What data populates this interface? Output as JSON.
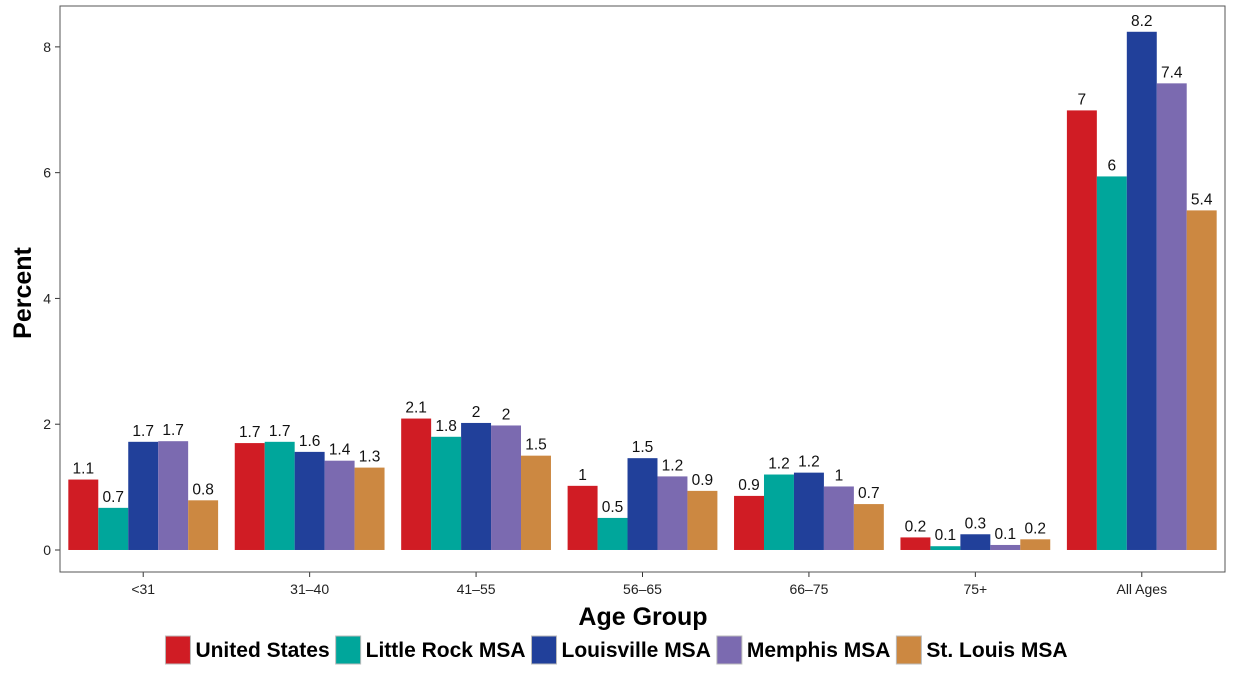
{
  "chart_data": {
    "type": "bar",
    "title": "",
    "xlabel": "Age Group",
    "ylabel": "Percent",
    "ylim": [
      -0.35,
      8.65
    ],
    "yticks": [
      0,
      2,
      4,
      6,
      8
    ],
    "categories": [
      "<31",
      "31–40",
      "41–55",
      "56–65",
      "66–75",
      "75+",
      "All Ages"
    ],
    "legend_position": "bottom",
    "grid": false,
    "series": [
      {
        "name": "United States",
        "color": "#D01C24",
        "values": [
          1.12,
          1.7,
          2.09,
          1.02,
          0.86,
          0.2,
          6.99
        ],
        "labels": [
          "1.1",
          "1.7",
          "2.1",
          "1",
          "0.9",
          "0.2",
          "7"
        ]
      },
      {
        "name": "Little Rock MSA",
        "color": "#00A69B",
        "values": [
          0.67,
          1.72,
          1.8,
          0.51,
          1.2,
          0.06,
          5.94
        ],
        "labels": [
          "0.7",
          "1.7",
          "1.8",
          "0.5",
          "1.2",
          "0.1",
          "6"
        ]
      },
      {
        "name": "Louisville MSA",
        "color": "#21409A",
        "values": [
          1.72,
          1.56,
          2.02,
          1.46,
          1.23,
          0.25,
          8.24
        ],
        "labels": [
          "1.7",
          "1.6",
          "2",
          "1.5",
          "1.2",
          "0.3",
          "8.2"
        ]
      },
      {
        "name": "Memphis MSA",
        "color": "#7B6AB0",
        "values": [
          1.73,
          1.42,
          1.98,
          1.17,
          1.01,
          0.08,
          7.42
        ],
        "labels": [
          "1.7",
          "1.4",
          "2",
          "1.2",
          "1",
          "0.1",
          "7.4"
        ]
      },
      {
        "name": "St. Louis MSA",
        "color": "#CC8841",
        "values": [
          0.79,
          1.31,
          1.5,
          0.94,
          0.73,
          0.17,
          5.4
        ],
        "labels": [
          "0.8",
          "1.3",
          "1.5",
          "0.9",
          "0.7",
          "0.2",
          "5.4"
        ]
      }
    ]
  }
}
